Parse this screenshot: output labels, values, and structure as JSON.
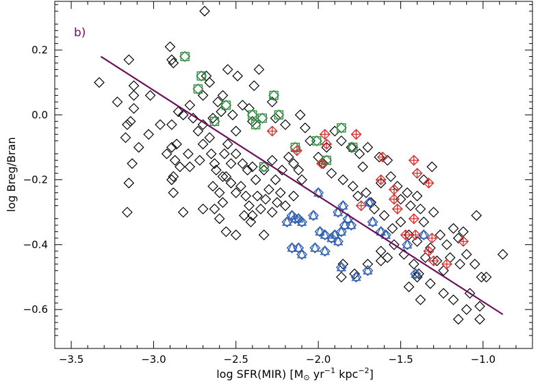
{
  "chart_data": {
    "type": "scatter",
    "panel_label": "b)",
    "xlabel_text": "log SFR(MIR) [M",
    "xlabel_sub": "⊙",
    "xlabel_mid1": " yr",
    "xlabel_sup1": "−1",
    "xlabel_mid2": " kpc",
    "xlabel_sup2": "−2",
    "xlabel_end": "]",
    "ylabel": "log Breg/Bran",
    "xlim": [
      -3.6,
      -0.7
    ],
    "ylim": [
      -0.72,
      0.35
    ],
    "xticks": [
      -3.5,
      -3.0,
      -2.5,
      -2.0,
      -1.5,
      -1.0
    ],
    "xtick_labels": [
      "−3.5",
      "−3.0",
      "−2.5",
      "−2.0",
      "−1.5",
      "−1.0"
    ],
    "yticks": [
      0.2,
      0.0,
      -0.2,
      -0.4,
      -0.6
    ],
    "ytick_labels": [
      "0.2",
      "0.0",
      "−0.2",
      "−0.4",
      "−0.6"
    ],
    "fit_line": {
      "x": [
        -3.32,
        -0.88
      ],
      "y": [
        0.18,
        -0.615
      ],
      "color": "#6b0f5a"
    },
    "colors": {
      "black": "#000000",
      "green": "#2e8b3e",
      "red": "#d62f2f",
      "blue": "#2e5db3"
    },
    "series": [
      {
        "marker": "diamond",
        "color": "black",
        "points": [
          [
            -2.69,
            0.32
          ],
          [
            -3.15,
            0.17
          ],
          [
            -2.9,
            0.21
          ],
          [
            -2.89,
            0.17
          ],
          [
            -2.88,
            0.16
          ],
          [
            -3.33,
            0.1
          ],
          [
            -3.12,
            0.09
          ],
          [
            -3.12,
            0.06
          ],
          [
            -3.02,
            0.06
          ],
          [
            -2.68,
            0.12
          ],
          [
            -2.66,
            0.1
          ],
          [
            -2.55,
            0.14
          ],
          [
            -2.49,
            0.12
          ],
          [
            -2.58,
            0.06
          ],
          [
            -2.36,
            0.14
          ],
          [
            -2.39,
            0.09
          ],
          [
            -3.22,
            0.04
          ],
          [
            -3.12,
            0.02
          ],
          [
            -3.14,
            -0.02
          ],
          [
            -3.16,
            -0.03
          ],
          [
            -3.09,
            -0.1
          ],
          [
            -3.17,
            -0.07
          ],
          [
            -3.13,
            -0.15
          ],
          [
            -3.15,
            -0.21
          ],
          [
            -3.16,
            -0.3
          ],
          [
            -2.89,
            -0.03
          ],
          [
            -2.85,
            0.01
          ],
          [
            -2.78,
            0.03
          ],
          [
            -2.82,
            0.0
          ],
          [
            -2.76,
            -0.01
          ],
          [
            -2.73,
            -0.05
          ],
          [
            -2.7,
            -0.03
          ],
          [
            -2.66,
            -0.07
          ],
          [
            -2.64,
            -0.01
          ],
          [
            -2.7,
            0.06
          ],
          [
            -2.61,
            0.04
          ],
          [
            -2.59,
            0.01
          ],
          [
            -2.52,
            0.0
          ],
          [
            -2.5,
            -0.05
          ],
          [
            -2.46,
            0.03
          ],
          [
            -2.42,
            0.02
          ],
          [
            -2.4,
            -0.02
          ],
          [
            -2.28,
            0.04
          ],
          [
            -2.26,
            -0.01
          ],
          [
            -2.2,
            -0.03
          ],
          [
            -2.11,
            0.0
          ],
          [
            -2.08,
            -0.04
          ],
          [
            -2.05,
            -0.08
          ],
          [
            -3.03,
            -0.06
          ],
          [
            -2.96,
            -0.03
          ],
          [
            -2.89,
            -0.1
          ],
          [
            -2.92,
            -0.12
          ],
          [
            -2.86,
            -0.09
          ],
          [
            -2.87,
            -0.14
          ],
          [
            -2.84,
            -0.16
          ],
          [
            -2.88,
            -0.19
          ],
          [
            -2.89,
            -0.2
          ],
          [
            -2.88,
            -0.24
          ],
          [
            -2.79,
            -0.12
          ],
          [
            -2.78,
            -0.16
          ],
          [
            -2.72,
            -0.14
          ],
          [
            -2.7,
            -0.09
          ],
          [
            -2.65,
            -0.12
          ],
          [
            -2.63,
            -0.15
          ],
          [
            -2.62,
            -0.17
          ],
          [
            -2.57,
            -0.12
          ],
          [
            -2.55,
            -0.09
          ],
          [
            -2.53,
            -0.15
          ],
          [
            -2.5,
            -0.12
          ],
          [
            -2.46,
            -0.15
          ],
          [
            -2.43,
            -0.17
          ],
          [
            -2.4,
            -0.16
          ],
          [
            -2.38,
            -0.2
          ],
          [
            -2.33,
            -0.17
          ],
          [
            -2.28,
            -0.14
          ],
          [
            -2.26,
            -0.2
          ],
          [
            -2.22,
            -0.17
          ],
          [
            -2.18,
            -0.13
          ],
          [
            -2.15,
            -0.15
          ],
          [
            -2.12,
            -0.17
          ],
          [
            -2.1,
            -0.2
          ],
          [
            -2.58,
            -0.19
          ],
          [
            -2.56,
            -0.19
          ],
          [
            -2.64,
            -0.22
          ],
          [
            -2.6,
            -0.24
          ],
          [
            -2.58,
            -0.27
          ],
          [
            -2.53,
            -0.21
          ],
          [
            -2.5,
            -0.24
          ],
          [
            -2.47,
            -0.22
          ],
          [
            -2.44,
            -0.25
          ],
          [
            -2.42,
            -0.28
          ],
          [
            -2.4,
            -0.31
          ],
          [
            -2.37,
            -0.25
          ],
          [
            -2.35,
            -0.29
          ],
          [
            -2.32,
            -0.26
          ],
          [
            -2.3,
            -0.23
          ],
          [
            -2.28,
            -0.3
          ],
          [
            -2.25,
            -0.27
          ],
          [
            -2.23,
            -0.24
          ],
          [
            -2.2,
            -0.28
          ],
          [
            -2.15,
            -0.25
          ],
          [
            -2.6,
            -0.32
          ],
          [
            -2.56,
            -0.36
          ],
          [
            -2.5,
            -0.37
          ],
          [
            -2.45,
            -0.31
          ],
          [
            -2.41,
            -0.33
          ],
          [
            -2.33,
            -0.37
          ],
          [
            -2.7,
            -0.29
          ],
          [
            -2.63,
            -0.29
          ],
          [
            -2.82,
            -0.3
          ],
          [
            -2.0,
            -0.13
          ],
          [
            -1.95,
            -0.1
          ],
          [
            -1.9,
            -0.05
          ],
          [
            -1.86,
            -0.08
          ],
          [
            -1.8,
            -0.1
          ],
          [
            -1.75,
            -0.12
          ],
          [
            -1.73,
            -0.16
          ],
          [
            -1.7,
            -0.1
          ],
          [
            -1.63,
            -0.13
          ],
          [
            -1.58,
            -0.14
          ],
          [
            -1.97,
            -0.15
          ],
          [
            -1.92,
            -0.18
          ],
          [
            -1.85,
            -0.2
          ],
          [
            -1.79,
            -0.22
          ],
          [
            -1.76,
            -0.25
          ],
          [
            -1.71,
            -0.24
          ],
          [
            -1.68,
            -0.27
          ],
          [
            -1.62,
            -0.21
          ],
          [
            -1.56,
            -0.19
          ],
          [
            -1.52,
            -0.22
          ],
          [
            -1.5,
            -0.26
          ],
          [
            -1.46,
            -0.24
          ],
          [
            -1.44,
            -0.28
          ],
          [
            -1.4,
            -0.25
          ],
          [
            -1.38,
            -0.29
          ],
          [
            -1.36,
            -0.2
          ],
          [
            -1.31,
            -0.16
          ],
          [
            -1.66,
            -0.29
          ],
          [
            -1.6,
            -0.31
          ],
          [
            -1.55,
            -0.35
          ],
          [
            -1.5,
            -0.33
          ],
          [
            -1.45,
            -0.37
          ],
          [
            -1.4,
            -0.39
          ],
          [
            -1.36,
            -0.33
          ],
          [
            -1.3,
            -0.3
          ],
          [
            -1.26,
            -0.37
          ],
          [
            -1.22,
            -0.4
          ],
          [
            -1.18,
            -0.35
          ],
          [
            -1.15,
            -0.38
          ],
          [
            -1.12,
            -0.36
          ],
          [
            -1.04,
            -0.31
          ],
          [
            -1.62,
            -0.42
          ],
          [
            -1.58,
            -0.44
          ],
          [
            -1.54,
            -0.4
          ],
          [
            -1.48,
            -0.43
          ],
          [
            -1.42,
            -0.46
          ],
          [
            -1.39,
            -0.49
          ],
          [
            -1.35,
            -0.44
          ],
          [
            -1.32,
            -0.41
          ],
          [
            -1.28,
            -0.45
          ],
          [
            -1.24,
            -0.48
          ],
          [
            -1.2,
            -0.44
          ],
          [
            -1.14,
            -0.46
          ],
          [
            -1.1,
            -0.43
          ],
          [
            -1.05,
            -0.46
          ],
          [
            -1.01,
            -0.5
          ],
          [
            -0.98,
            -0.5
          ],
          [
            -0.88,
            -0.43
          ],
          [
            -1.85,
            -0.46
          ],
          [
            -1.78,
            -0.49
          ],
          [
            -1.7,
            -0.46
          ],
          [
            -1.86,
            -0.5
          ],
          [
            -1.62,
            -0.45
          ],
          [
            -1.45,
            -0.53
          ],
          [
            -1.4,
            -0.5
          ],
          [
            -1.32,
            -0.52
          ],
          [
            -1.24,
            -0.55
          ],
          [
            -1.18,
            -0.57
          ],
          [
            -1.08,
            -0.55
          ],
          [
            -1.02,
            -0.59
          ],
          [
            -1.02,
            -0.63
          ],
          [
            -1.1,
            -0.6
          ],
          [
            -1.15,
            -0.63
          ],
          [
            -1.38,
            -0.57
          ]
        ]
      },
      {
        "marker": "diamond-square",
        "color": "green",
        "points": [
          [
            -2.81,
            0.18
          ],
          [
            -2.71,
            0.12
          ],
          [
            -2.73,
            0.08
          ],
          [
            -2.56,
            0.03
          ],
          [
            -2.4,
            0.0
          ],
          [
            -2.34,
            -0.01
          ],
          [
            -2.27,
            0.06
          ],
          [
            -2.24,
            0.0
          ],
          [
            -2.63,
            -0.02
          ],
          [
            -2.38,
            -0.03
          ],
          [
            -2.33,
            -0.16
          ],
          [
            -2.14,
            -0.1
          ],
          [
            -2.01,
            -0.08
          ],
          [
            -1.86,
            -0.04
          ],
          [
            -1.79,
            -0.1
          ],
          [
            -1.95,
            -0.14
          ]
        ]
      },
      {
        "marker": "diamond-cross",
        "color": "red",
        "points": [
          [
            -2.28,
            -0.05
          ],
          [
            -2.13,
            -0.11
          ],
          [
            -1.96,
            -0.06
          ],
          [
            -1.95,
            -0.09
          ],
          [
            -1.98,
            -0.15
          ],
          [
            -1.77,
            -0.06
          ],
          [
            -1.61,
            -0.13
          ],
          [
            -1.62,
            -0.2
          ],
          [
            -1.42,
            -0.14
          ],
          [
            -1.4,
            -0.18
          ],
          [
            -1.33,
            -0.21
          ],
          [
            -1.54,
            -0.23
          ],
          [
            -1.54,
            -0.26
          ],
          [
            -1.52,
            -0.29
          ],
          [
            -1.42,
            -0.32
          ],
          [
            -1.41,
            -0.37
          ],
          [
            -1.3,
            -0.45
          ],
          [
            -1.33,
            -0.42
          ],
          [
            -1.31,
            -0.38
          ],
          [
            -1.47,
            -0.37
          ],
          [
            -1.22,
            -0.46
          ],
          [
            -1.12,
            -0.39
          ],
          [
            -1.74,
            -0.28
          ]
        ]
      },
      {
        "marker": "diamond-triangle",
        "color": "blue",
        "points": [
          [
            -2.19,
            -0.33
          ],
          [
            -2.14,
            -0.32
          ],
          [
            -2.12,
            -0.32
          ],
          [
            -2.1,
            -0.33
          ],
          [
            -2.16,
            -0.41
          ],
          [
            -2.12,
            -0.41
          ],
          [
            -2.1,
            -0.43
          ],
          [
            -2.03,
            -0.31
          ],
          [
            -1.99,
            -0.36
          ],
          [
            -1.96,
            -0.37
          ],
          [
            -1.9,
            -0.37
          ],
          [
            -1.86,
            -0.36
          ],
          [
            -1.84,
            -0.34
          ],
          [
            -1.88,
            -0.3
          ],
          [
            -1.85,
            -0.28
          ],
          [
            -1.92,
            -0.38
          ],
          [
            -1.88,
            -0.39
          ],
          [
            -1.82,
            -0.32
          ],
          [
            -1.8,
            -0.34
          ],
          [
            -1.69,
            -0.27
          ],
          [
            -1.67,
            -0.33
          ],
          [
            -1.62,
            -0.36
          ],
          [
            -1.59,
            -0.37
          ],
          [
            -1.46,
            -0.4
          ],
          [
            -1.36,
            -0.37
          ],
          [
            -1.41,
            -0.49
          ],
          [
            -1.7,
            -0.48
          ],
          [
            -1.77,
            -0.5
          ],
          [
            -1.86,
            -0.47
          ],
          [
            -2.02,
            -0.41
          ],
          [
            -1.96,
            -0.42
          ],
          [
            -2.16,
            -0.31
          ],
          [
            -2.0,
            -0.24
          ]
        ]
      }
    ]
  }
}
